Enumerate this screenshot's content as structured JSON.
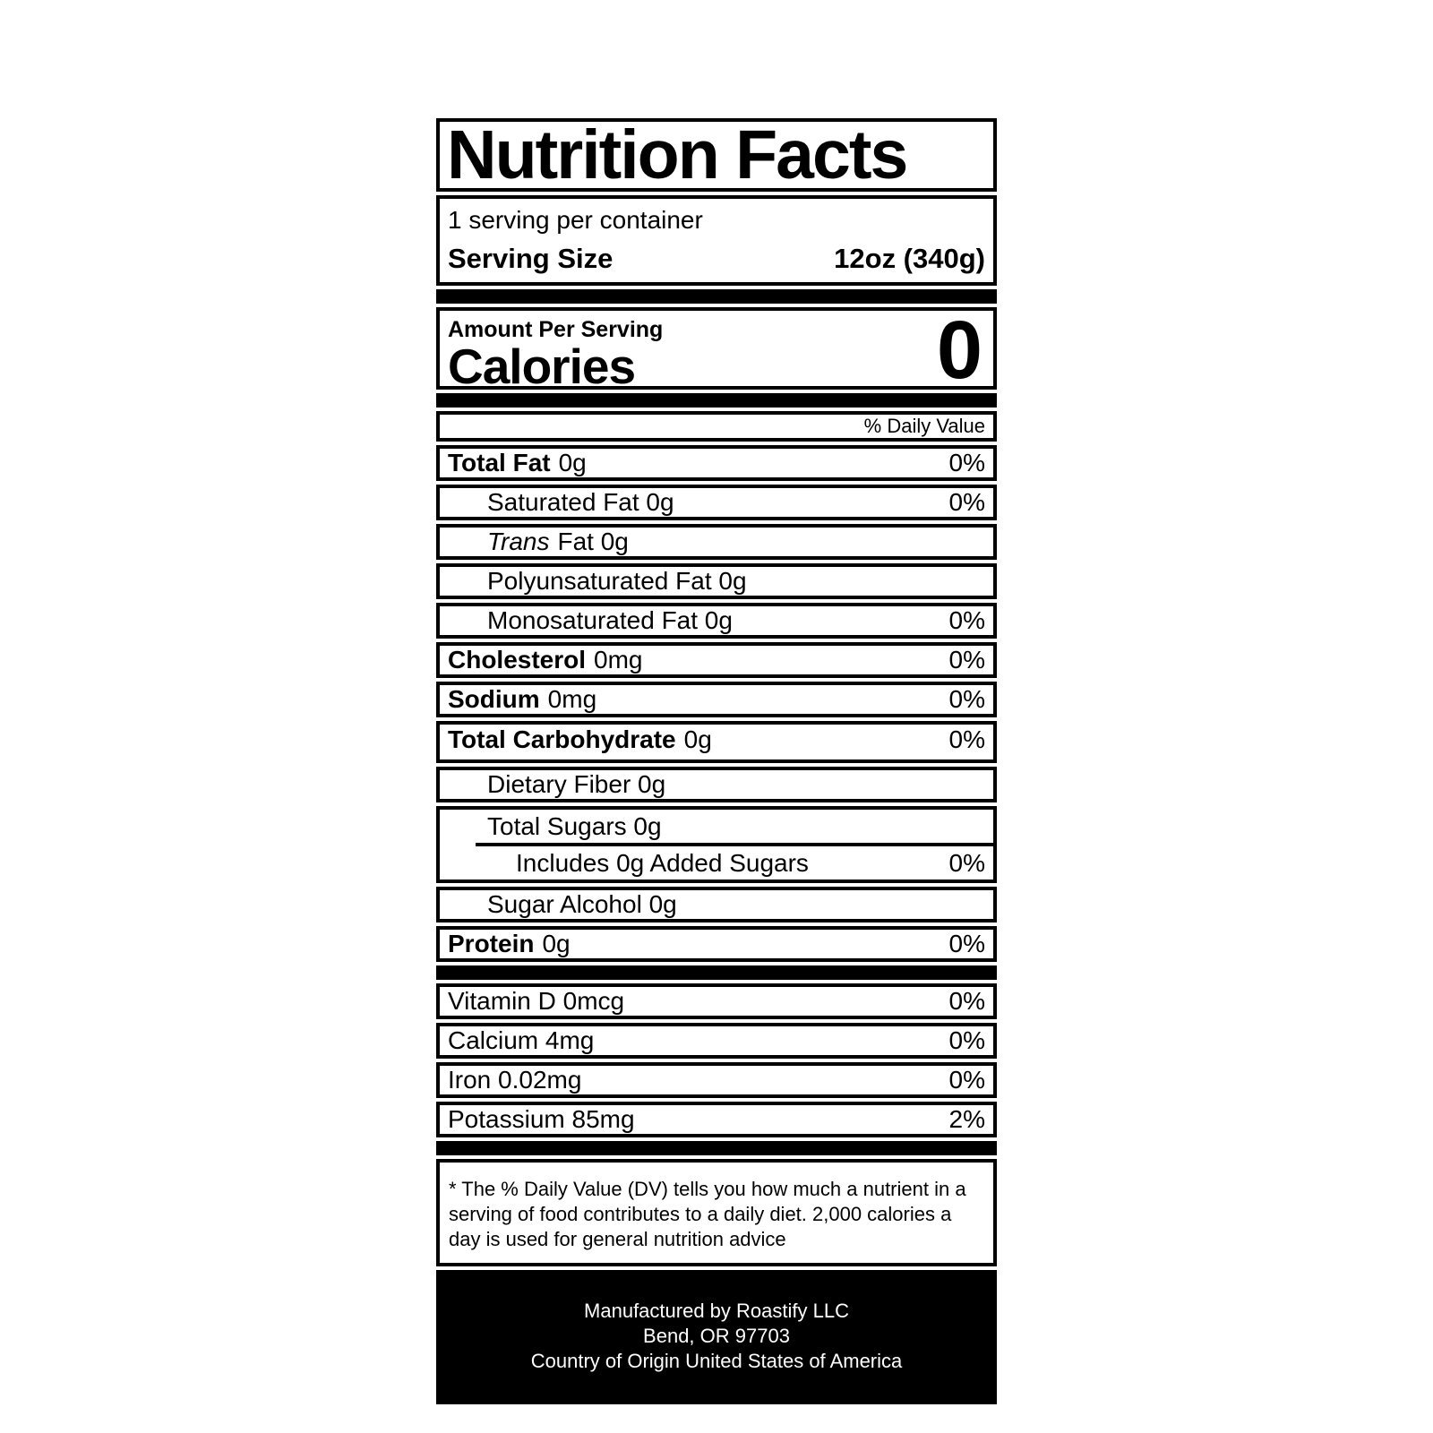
{
  "label": {
    "title": "Nutrition Facts",
    "servings_per_container": "1 serving per container",
    "serving_size": {
      "label": "Serving Size",
      "value": "12oz (340g)"
    },
    "amount_per_serving": "Amount Per Serving",
    "calories": {
      "label": "Calories",
      "value": "0"
    },
    "daily_value_header": "% Daily Value",
    "nutrients": [
      {
        "bold": "Total Fat",
        "text": "0g",
        "dv": "0%"
      },
      {
        "text": "Saturated Fat 0g",
        "dv": "0%"
      },
      {
        "italic": "Trans",
        "text": "Fat 0g",
        "dv": ""
      },
      {
        "text": "Polyunsaturated Fat 0g",
        "dv": ""
      },
      {
        "text": "Monosaturated Fat 0g",
        "dv": "0%"
      },
      {
        "bold": "Cholesterol",
        "text": "0mg",
        "dv": "0%"
      },
      {
        "bold": "Sodium",
        "text": "0mg",
        "dv": "0%"
      },
      {
        "bold": "Total Carbohydrate",
        "text": "0g",
        "dv": "0%"
      },
      {
        "text": "Dietary Fiber 0g",
        "dv": ""
      },
      {
        "text": "Total Sugars 0g",
        "dv": ""
      },
      {
        "text": "Includes 0g Added Sugars",
        "dv": "0%"
      },
      {
        "text": "Sugar Alcohol 0g",
        "dv": ""
      },
      {
        "bold": "Protein",
        "text": "0g",
        "dv": "0%"
      }
    ],
    "vitamins": [
      {
        "text": "Vitamin D 0mcg",
        "dv": "0%"
      },
      {
        "text": "Calcium 4mg",
        "dv": "0%"
      },
      {
        "text": "Iron 0.02mg",
        "dv": "0%"
      },
      {
        "text": "Potassium 85mg",
        "dv": "2%"
      }
    ],
    "footnote": "* The % Daily Value (DV) tells you how much a nutrient in a serving of food contributes to a daily diet. 2,000 calories a day is used for general nutrition advice",
    "manufacturer": {
      "line1": "Manufactured by Roastify LLC",
      "line2": "Bend, OR 97703",
      "line3": "Country of Origin United States of America"
    },
    "colors": {
      "ink": "#000000",
      "background": "#ffffff"
    }
  }
}
